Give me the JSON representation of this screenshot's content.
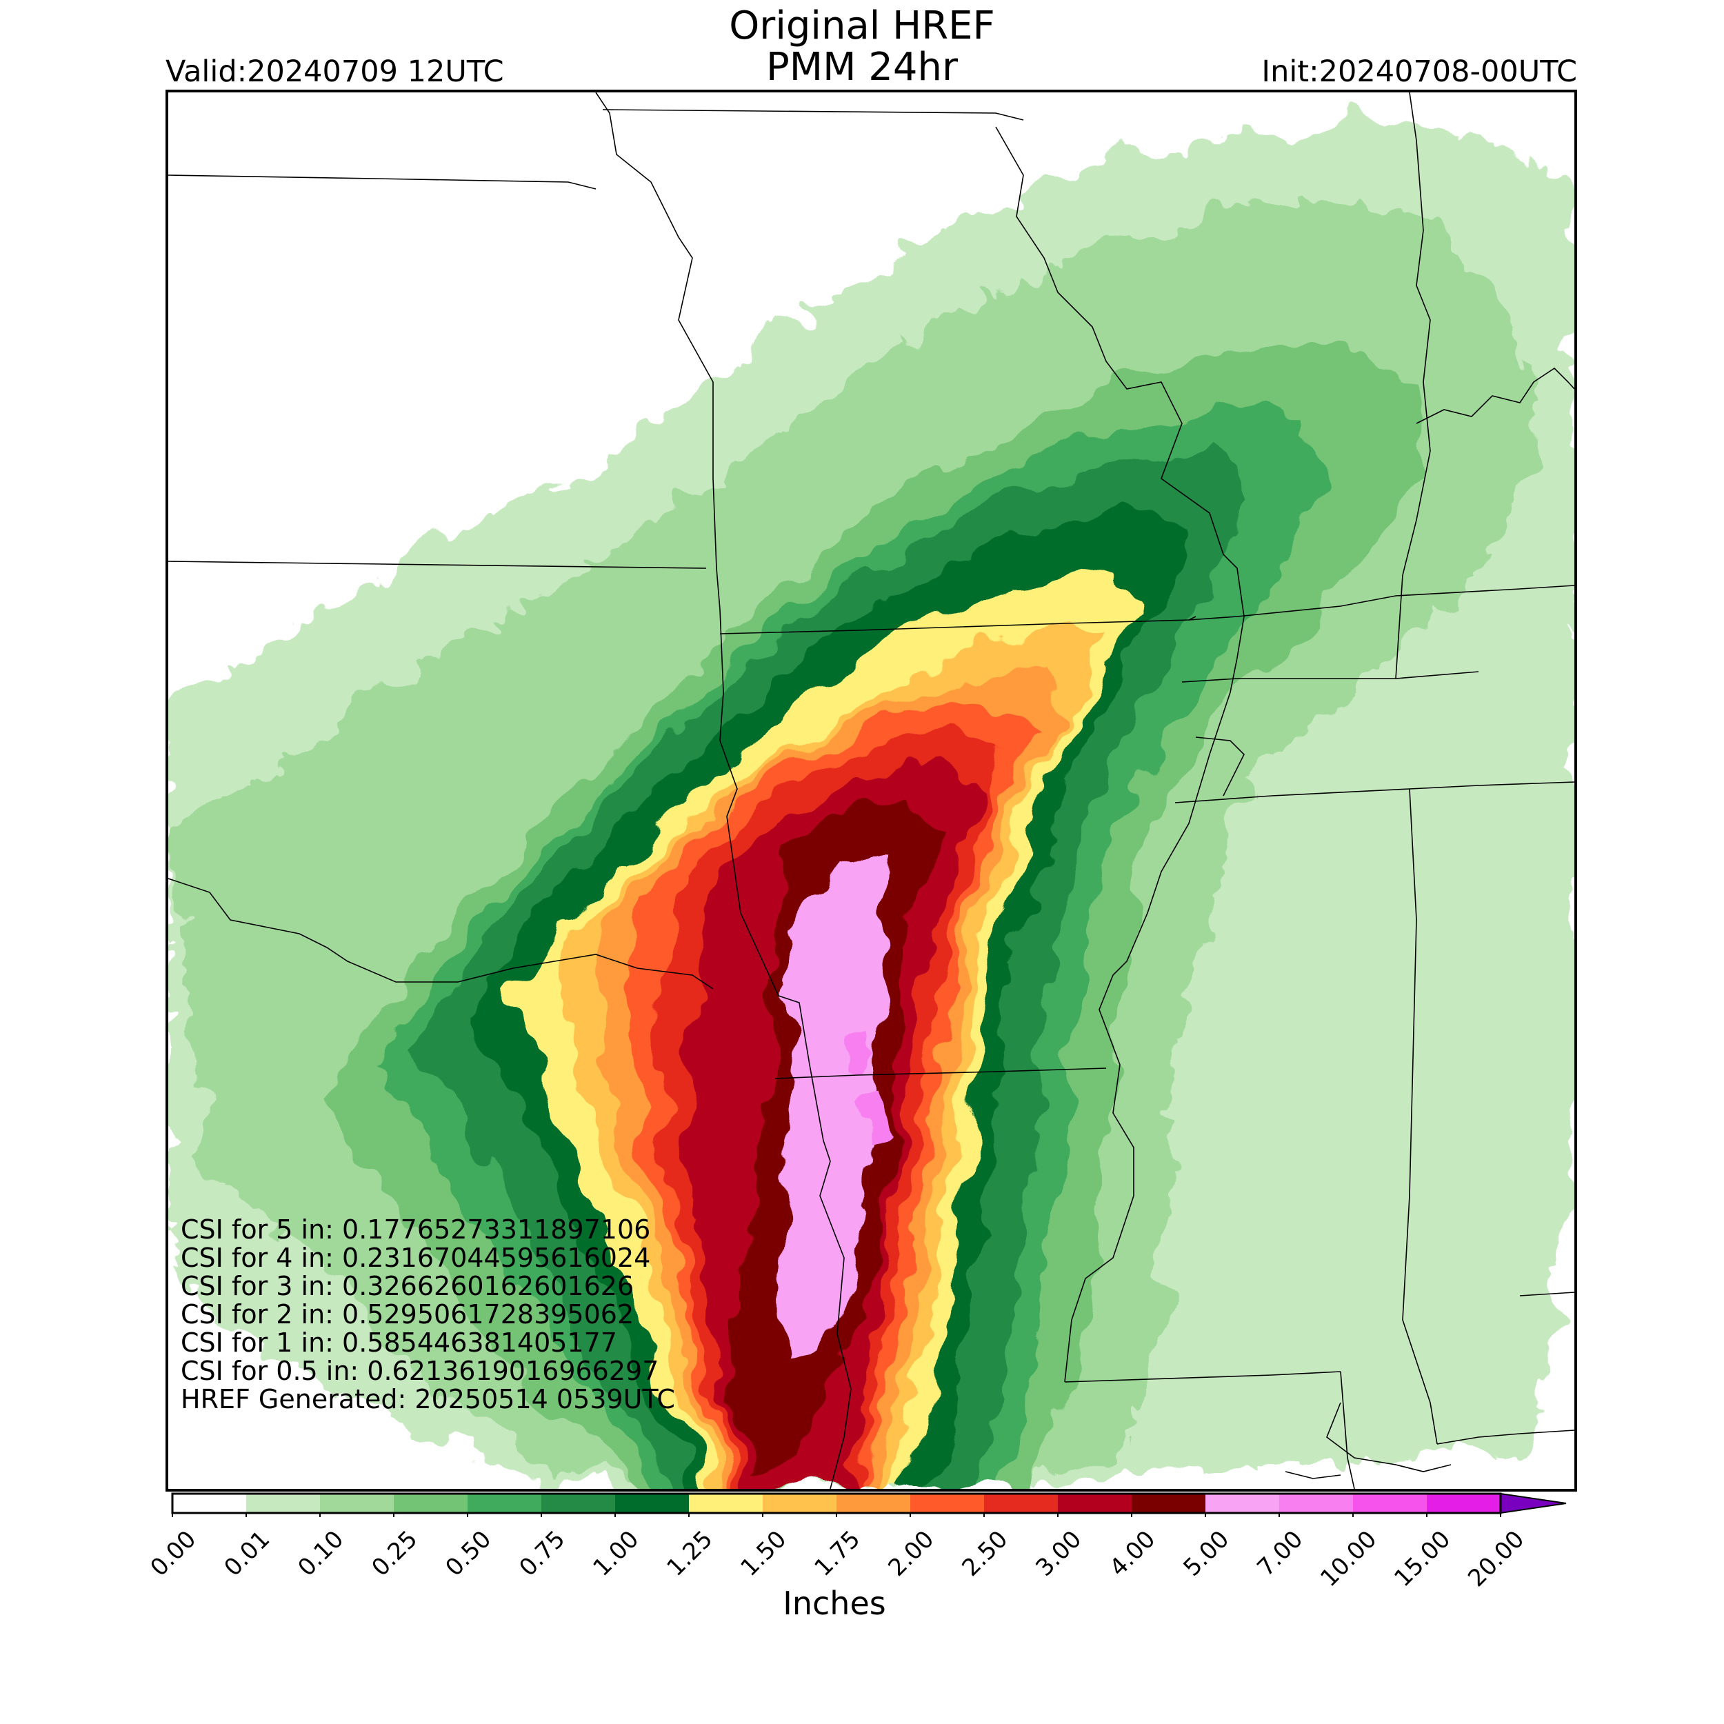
{
  "title_line1": "Original HREF",
  "title_line2": "PMM 24hr",
  "valid_label": "Valid:20240709 12UTC",
  "init_label": "Init:20240708-00UTC",
  "stats": [
    "CSI for 5 in: 0.17765273311897106",
    "CSI for 4 in: 0.23167044595616024",
    "CSI for 3 in: 0.3266260162601626",
    "CSI for 2 in: 0.5295061728395062",
    "CSI for 1 in: 0.585446381405177",
    "CSI for 0.5 in: 0.6213619016966297",
    "HREF Generated: 20250514 0539UTC"
  ],
  "colorbar": {
    "units_label": "Inches",
    "ticks": [
      "0.00",
      "0.01",
      "0.10",
      "0.25",
      "0.50",
      "0.75",
      "1.00",
      "1.25",
      "1.50",
      "1.75",
      "2.00",
      "2.50",
      "3.00",
      "4.00",
      "5.00",
      "7.00",
      "10.00",
      "15.00",
      "20.00"
    ],
    "colors": [
      "#ffffff",
      "#c7e9c0",
      "#a1d99b",
      "#74c476",
      "#41ab5d",
      "#238b45",
      "#006d2c",
      "#fff07a",
      "#ffc34d",
      "#ff9a3c",
      "#ff5a2a",
      "#e52a1f",
      "#b3001f",
      "#7a0000",
      "#f9a3f5",
      "#f77ff0",
      "#f553ec",
      "#e41ee6",
      "#a300c8"
    ],
    "extend_color": "#7a00c0"
  },
  "map": {
    "precip_levels": [
      "0.01",
      "0.10",
      "0.25",
      "0.50",
      "0.75",
      "1.00",
      "1.25",
      "1.50",
      "1.75",
      "2.00",
      "2.50",
      "3.00",
      "4.00",
      "5.00",
      "7.00"
    ]
  }
}
